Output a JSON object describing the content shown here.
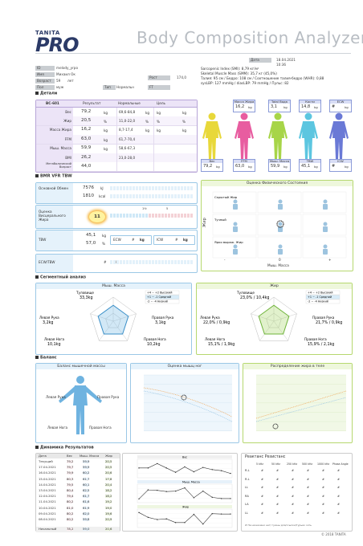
{
  "header": {
    "brand_top": "TANITA",
    "brand_pro": "PRO",
    "title": "Body Composition Analyzer"
  },
  "date": {
    "label": "Дата",
    "value": "18.04.2021 10:36"
  },
  "profile": {
    "id_label": "ID",
    "id_value": "melody_yrpo",
    "name_label": "Имя",
    "name_value": "Михаил Ок",
    "age_label": "Возраст",
    "age_value": "59",
    "age_unit": "лет",
    "height_label": "Рост",
    "height_value": "174,0",
    "sex_label": "Пол",
    "sex_value": "муж",
    "type_label": "Тип",
    "type_value": "Нормальн",
    "ft_label": "FT",
    "ft_value": ""
  },
  "indices": {
    "line1": "Sarcopenic Index (SMI): 8,79 кг/м²",
    "line2": "Skeletal Muscle Mass (SMM): 35,7 кг (45,0%)",
    "line3": "Талия: 95 см / Бедро: 108 см / Соотношение талия-бедро (WHR): 0,88",
    "line4": "sysLBP: 127 mmHg / diasLBP: 79 mmHg / Пульс: 82"
  },
  "details": {
    "section": "Детали",
    "model": "BC-601",
    "col_result": "Результат",
    "col_normal": "Нормальные",
    "col_goal": "Цель",
    "rows": [
      {
        "name": "Вес",
        "value": "79,2",
        "unit": "kg",
        "normal": "69,6-84,8",
        "nunit": "kg",
        "gunit1": "kg",
        "gunit2": "kg"
      },
      {
        "name": "Жир",
        "value": "20,5",
        "unit": "%",
        "normal": "11,0-22,0",
        "nunit": "%",
        "gunit1": "%",
        "gunit2": "%"
      },
      {
        "name": "Масса Жира",
        "value": "16,2",
        "unit": "kg",
        "normal": "8,7-17,4",
        "nunit": "kg",
        "gunit1": "kg",
        "gunit2": "kg"
      },
      {
        "name": "FFM",
        "value": "63,0",
        "unit": "kg",
        "normal": "61,7-70,4",
        "nunit": "",
        "gunit1": "",
        "gunit2": ""
      },
      {
        "name": "Мыш. Масса",
        "value": "59,9",
        "unit": "kg",
        "normal": "58,6-67,3",
        "nunit": "",
        "gunit1": "",
        "gunit2": ""
      },
      {
        "name": "BMI",
        "value": "26,2",
        "unit": "",
        "normal": "23,0-28,0",
        "nunit": "",
        "gunit1": "",
        "gunit2": ""
      },
      {
        "name": "Метаболический Возраст",
        "value": "44,0",
        "unit": "",
        "normal": "",
        "nunit": "",
        "gunit1": "",
        "gunit2": ""
      }
    ]
  },
  "body_figures": {
    "fat_mass_label": "Масса Жира",
    "fat_mass_value": "16,2",
    "fat_mass_unit": "kg",
    "tbw_label": "Total Вода",
    "tbw_value": "3,1",
    "tbw_unit": "kg",
    "bone_label": "Кости",
    "bone_value": "14,8",
    "bone_unit": "kg",
    "ecw_label": "ECW",
    "ecw_value": "#",
    "ecw_unit": "kg",
    "weight_label": "Вес",
    "weight_value": "79,2",
    "weight_unit": "kg",
    "ffm_label": "FFM",
    "ffm_value": "63,0",
    "ffm_unit": "kg",
    "muscle_label": "Мыш. Масса",
    "muscle_value": "59,9",
    "muscle_unit": "kg",
    "tbw2_label": "TBW",
    "tbw2_value": "45,1",
    "tbw2_unit": "kg",
    "icw_label": "ICW",
    "icw_value": "#",
    "icw_unit": "kg",
    "colors": [
      "#e8d83a",
      "#e85da0",
      "#a7d548",
      "#5cc6e0",
      "#6a79d6"
    ]
  },
  "bmr": {
    "section": "BMR VFR TBW",
    "bmr_label": "Основной Обмен",
    "bmr_kj": "7576",
    "bmr_kj_unit": "kJ",
    "bmr_kcal": "1810",
    "bmr_kcal_unit": "kcal",
    "vfr_label": "Оценка Висцерального Жира",
    "vfr_value": "11",
    "tbw_label": "TBW",
    "tbw_kg": "45,1",
    "tbw_kg_unit": "kg",
    "tbw_pct": "57,0",
    "tbw_pct_unit": "%",
    "ecw_label": "ECW",
    "ecw_value": "#",
    "ecw_unit": "kg",
    "icw_label": "ICW",
    "icw_value": "#",
    "icw_unit": "kg",
    "ecwtbw_label": "ECW/TBW",
    "ecwtbw_value": "#",
    "ecwtbw_unit": "%"
  },
  "physique": {
    "title": "Оценка Физического Состояния",
    "y_axis": "Жир",
    "x_axis": "Мыш. Масса",
    "x_minus": "-",
    "x_zero": "0",
    "x_plus": "+",
    "rows": [
      "Скрытый Жир",
      "Тучный",
      "Ярко выраж. Жир"
    ],
    "marker": "star"
  },
  "segment": {
    "section": "Сегментный анализ",
    "muscle_title": "Мыш. Масса",
    "fat_title": "Жир",
    "legend": [
      "+4 ~ +2 Высокий",
      "+1 ~ -1 Средний",
      "-2 ~ -4 Низкий"
    ],
    "muscle": {
      "trunk_label": "Туловище",
      "trunk_value": "33,3kg",
      "larm_label": "Левая Рука",
      "larm_value": "3,2kg",
      "rarm_label": "Правая Рука",
      "rarm_value": "3,1kg",
      "lleg_label": "Левая Нога",
      "lleg_value": "10,1kg",
      "rleg_label": "Правая Нога",
      "rleg_value": "10,2kg"
    },
    "fat": {
      "trunk_label": "Туловище",
      "trunk_value": "23,0% / 10,4kg",
      "larm_label": "Левая Рука",
      "larm_value": "22,0% / 0,9kg",
      "rarm_label": "Правая Рука",
      "rarm_value": "21,7% / 0,9kg",
      "lleg_label": "Левая Нога",
      "lleg_value": "15,1% / 1,9kg",
      "rleg_label": "Правая Нога",
      "rleg_value": "15,9% / 2,1kg"
    }
  },
  "balance": {
    "section": "Баланс",
    "muscle_balance_title": "Баланс мышечной массы",
    "leg_score_title": "Оценка мышц ног",
    "fat_dist_title": "Распределение жира в теле",
    "larm": "Левая Рука",
    "rarm": "Правая Рука",
    "lleg": "Левая Нога",
    "rleg": "Правая Нога"
  },
  "dynamics": {
    "section": "Динамика Результатов",
    "col_date": "Дата",
    "col_weight": "Вес",
    "col_muscle": "Мыш. Масса",
    "col_fat": "Жир",
    "rows": [
      {
        "date": "Текущий",
        "w": "79,2",
        "m": "59,9",
        "f": "20,5"
      },
      {
        "date": "17.04.2021",
        "w": "79,7",
        "m": "59,9",
        "f": "20,5"
      },
      {
        "date": "16.04.2021",
        "w": "79,9",
        "m": "60,2",
        "f": "20,6"
      },
      {
        "date": "15.04.2021",
        "w": "80,3",
        "m": "61,7",
        "f": "17,8"
      },
      {
        "date": "14.04.2021",
        "w": "79,5",
        "m": "60,1",
        "f": "20,4"
      },
      {
        "date": "13.04.2021",
        "w": "80,4",
        "m": "62,5",
        "f": "18,2"
      },
      {
        "date": "12.04.2021",
        "w": "79,4",
        "m": "61,7",
        "f": "18,2"
      },
      {
        "date": "11.04.2021",
        "w": "80,2",
        "m": "61,6",
        "f": "19,2"
      },
      {
        "date": "10.04.2021",
        "w": "81,0",
        "m": "61,9",
        "f": "19,0"
      },
      {
        "date": "09.04.2021",
        "w": "80,2",
        "m": "62,0",
        "f": "19,6"
      },
      {
        "date": "08.04.2021",
        "w": "80,2",
        "m": "59,8",
        "f": "20,9"
      },
      {
        "date": "Начальный",
        "w": "78,2",
        "m": "59,0",
        "f": "20,6"
      }
    ],
    "chart_titles": [
      "Вес",
      "Мыш. Масса",
      "Жир"
    ],
    "reactance_title": "Реактанс Резистанс",
    "react_cols": [
      "5 kHz",
      "50 kHz",
      "250 kHz",
      "500 kHz",
      "1000 kHz"
    ],
    "react_rows": [
      "R-L",
      "R-L",
      "LL",
      "RA",
      "LA",
      "LL"
    ],
    "react_value": "#",
    "react_last": "Phase Angle",
    "react_note": "# Не назначено нет/ гуюны для/ссылки/Гурьик сеть"
  },
  "footer": "© 2018 TANITA"
}
